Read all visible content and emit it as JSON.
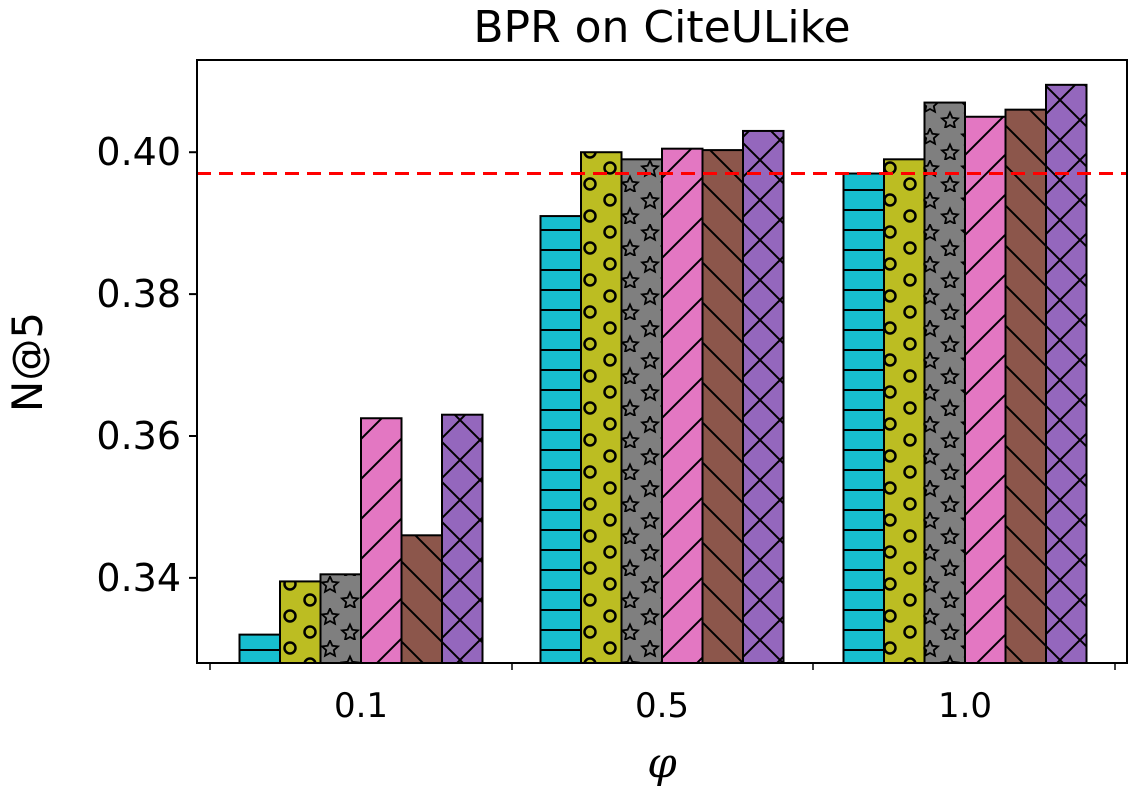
{
  "chart_data": {
    "type": "bar",
    "title": "BPR on CiteULike",
    "xlabel": "φ",
    "ylabel": "N@5",
    "categories": [
      "0.1",
      "0.5",
      "1.0"
    ],
    "ylim": [
      0.328,
      0.413
    ],
    "yticks": [
      0.34,
      0.36,
      0.38,
      0.4
    ],
    "ytick_labels": [
      "0.34",
      "0.36",
      "0.38",
      "0.40"
    ],
    "reference_line": {
      "value": 0.397,
      "color": "#ff0000",
      "style": "dashed"
    },
    "grid": false,
    "series": [
      {
        "values": [
          0.332,
          0.391,
          0.397
        ],
        "color": "#17becf",
        "hatch": "horizontal"
      },
      {
        "values": [
          0.3395,
          0.4,
          0.399
        ],
        "color": "#bcbd22",
        "hatch": "circles"
      },
      {
        "values": [
          0.3405,
          0.399,
          0.407
        ],
        "color": "#7f7f7f",
        "hatch": "stars"
      },
      {
        "values": [
          0.3625,
          0.4005,
          0.405
        ],
        "color": "#e377c2",
        "hatch": "forward-diagonal"
      },
      {
        "values": [
          0.346,
          0.4003,
          0.406
        ],
        "color": "#8c564b",
        "hatch": "back-diagonal"
      },
      {
        "values": [
          0.363,
          0.403,
          0.4095
        ],
        "color": "#9467bd",
        "hatch": "crosshatch"
      }
    ]
  }
}
